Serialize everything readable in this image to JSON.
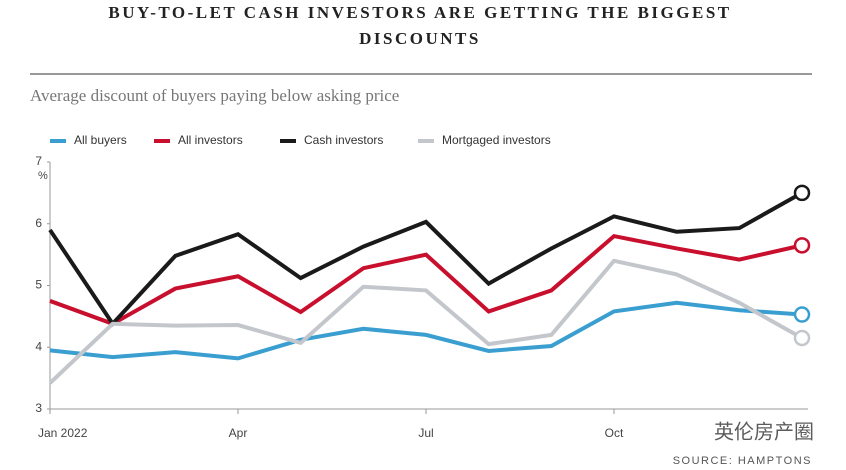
{
  "chart_data": {
    "type": "line",
    "title": "BUY-TO-LET CASH INVESTORS ARE GETTING THE BIGGEST DISCOUNTS",
    "subtitle": "Average discount of buyers paying below asking price",
    "y_unit": "%",
    "source": "SOURCE: HAMPTONS",
    "watermark": "英伦房产圈",
    "categories": [
      "Jan 2022",
      null,
      null,
      "Apr",
      null,
      null,
      "Jul",
      null,
      null,
      "Oct",
      null,
      null,
      null
    ],
    "ylim": [
      3,
      7
    ],
    "yticks": [
      3,
      4,
      5,
      6,
      7
    ],
    "series": [
      {
        "name": "All buyers",
        "color": "#3a9fd0",
        "values": [
          3.95,
          3.84,
          3.92,
          3.82,
          4.12,
          4.3,
          4.2,
          3.94,
          4.02,
          4.58,
          4.72,
          4.6,
          4.53
        ]
      },
      {
        "name": "All investors",
        "color": "#c8102e",
        "values": [
          4.75,
          4.38,
          4.95,
          5.15,
          4.57,
          5.28,
          5.5,
          4.58,
          4.92,
          5.8,
          5.6,
          5.42,
          5.65
        ]
      },
      {
        "name": "Cash investors",
        "color": "#1a1a1a",
        "values": [
          5.9,
          4.38,
          5.48,
          5.83,
          5.12,
          5.63,
          6.03,
          5.03,
          5.6,
          6.12,
          5.87,
          5.93,
          6.5
        ]
      },
      {
        "name": "Mortgaged investors",
        "color": "#c3c7cc",
        "values": [
          3.42,
          4.38,
          4.35,
          4.36,
          4.07,
          4.98,
          4.92,
          4.05,
          4.2,
          5.4,
          5.18,
          4.72,
          4.15
        ]
      }
    ]
  }
}
